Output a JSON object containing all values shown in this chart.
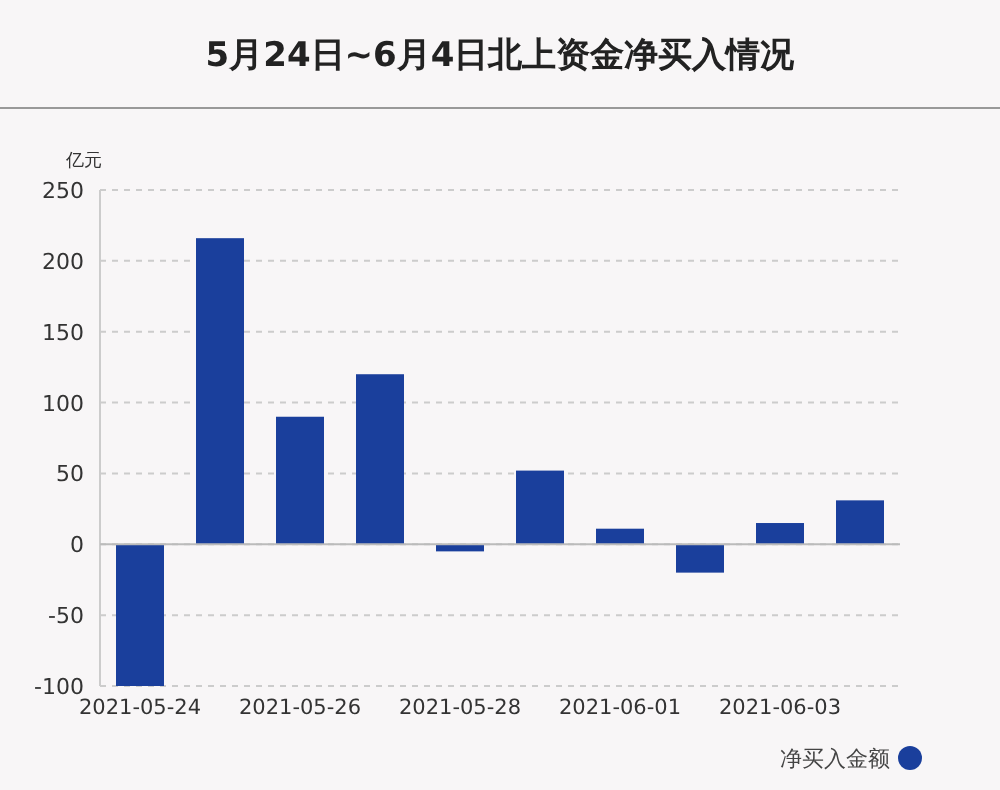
{
  "chart_data": {
    "type": "bar",
    "title": "5月24日~6月4日北上资金净买入情况",
    "ylabel": "亿元",
    "categories": [
      "2021-05-24",
      null,
      "2021-05-26",
      null,
      "2021-05-28",
      null,
      "2021-06-01",
      null,
      "2021-06-03",
      null
    ],
    "series": [
      {
        "name": "净买入金额",
        "color": "#1a3f9c",
        "values": [
          -100,
          216,
          90,
          120,
          -5,
          52,
          11,
          -20,
          15,
          31
        ]
      }
    ],
    "ylim": [
      -100,
      250
    ],
    "yticks": [
      -100,
      -50,
      0,
      50,
      100,
      150,
      200,
      250
    ],
    "grid": "y",
    "legend": "bottom right"
  }
}
